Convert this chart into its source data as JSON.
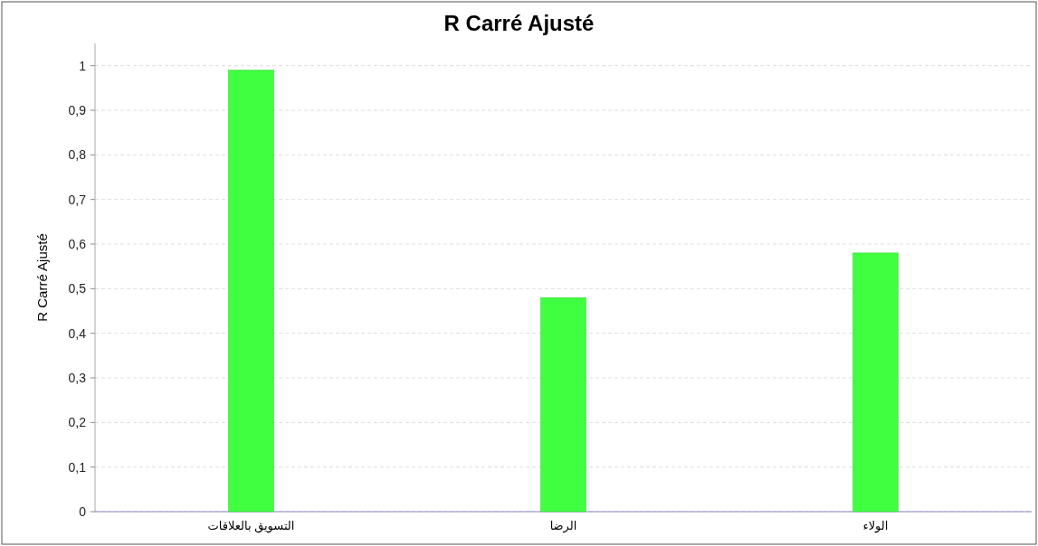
{
  "chart_data": {
    "type": "bar",
    "title": "R Carré Ajusté",
    "ylabel": "R Carré Ajusté",
    "categories": [
      "التسويق بالعلاقات",
      "الرضا",
      "الولاء"
    ],
    "values": [
      0.99,
      0.48,
      0.58
    ],
    "color": "#40ff40",
    "ylim": [
      0,
      1.05
    ],
    "yticks": [
      0,
      {
        "value": 0.1,
        "label": "0,1"
      },
      {
        "value": 0.2,
        "label": "0,2"
      },
      {
        "value": 0.3,
        "label": "0,3"
      },
      {
        "value": 0.4,
        "label": "0,4"
      },
      {
        "value": 0.5,
        "label": "0,5"
      },
      {
        "value": 0.6,
        "label": "0,6"
      },
      {
        "value": 0.7,
        "label": "0,7"
      },
      {
        "value": 0.8,
        "label": "0,8"
      },
      {
        "value": 0.9,
        "label": "0,9"
      },
      1
    ],
    "grid": "y"
  }
}
